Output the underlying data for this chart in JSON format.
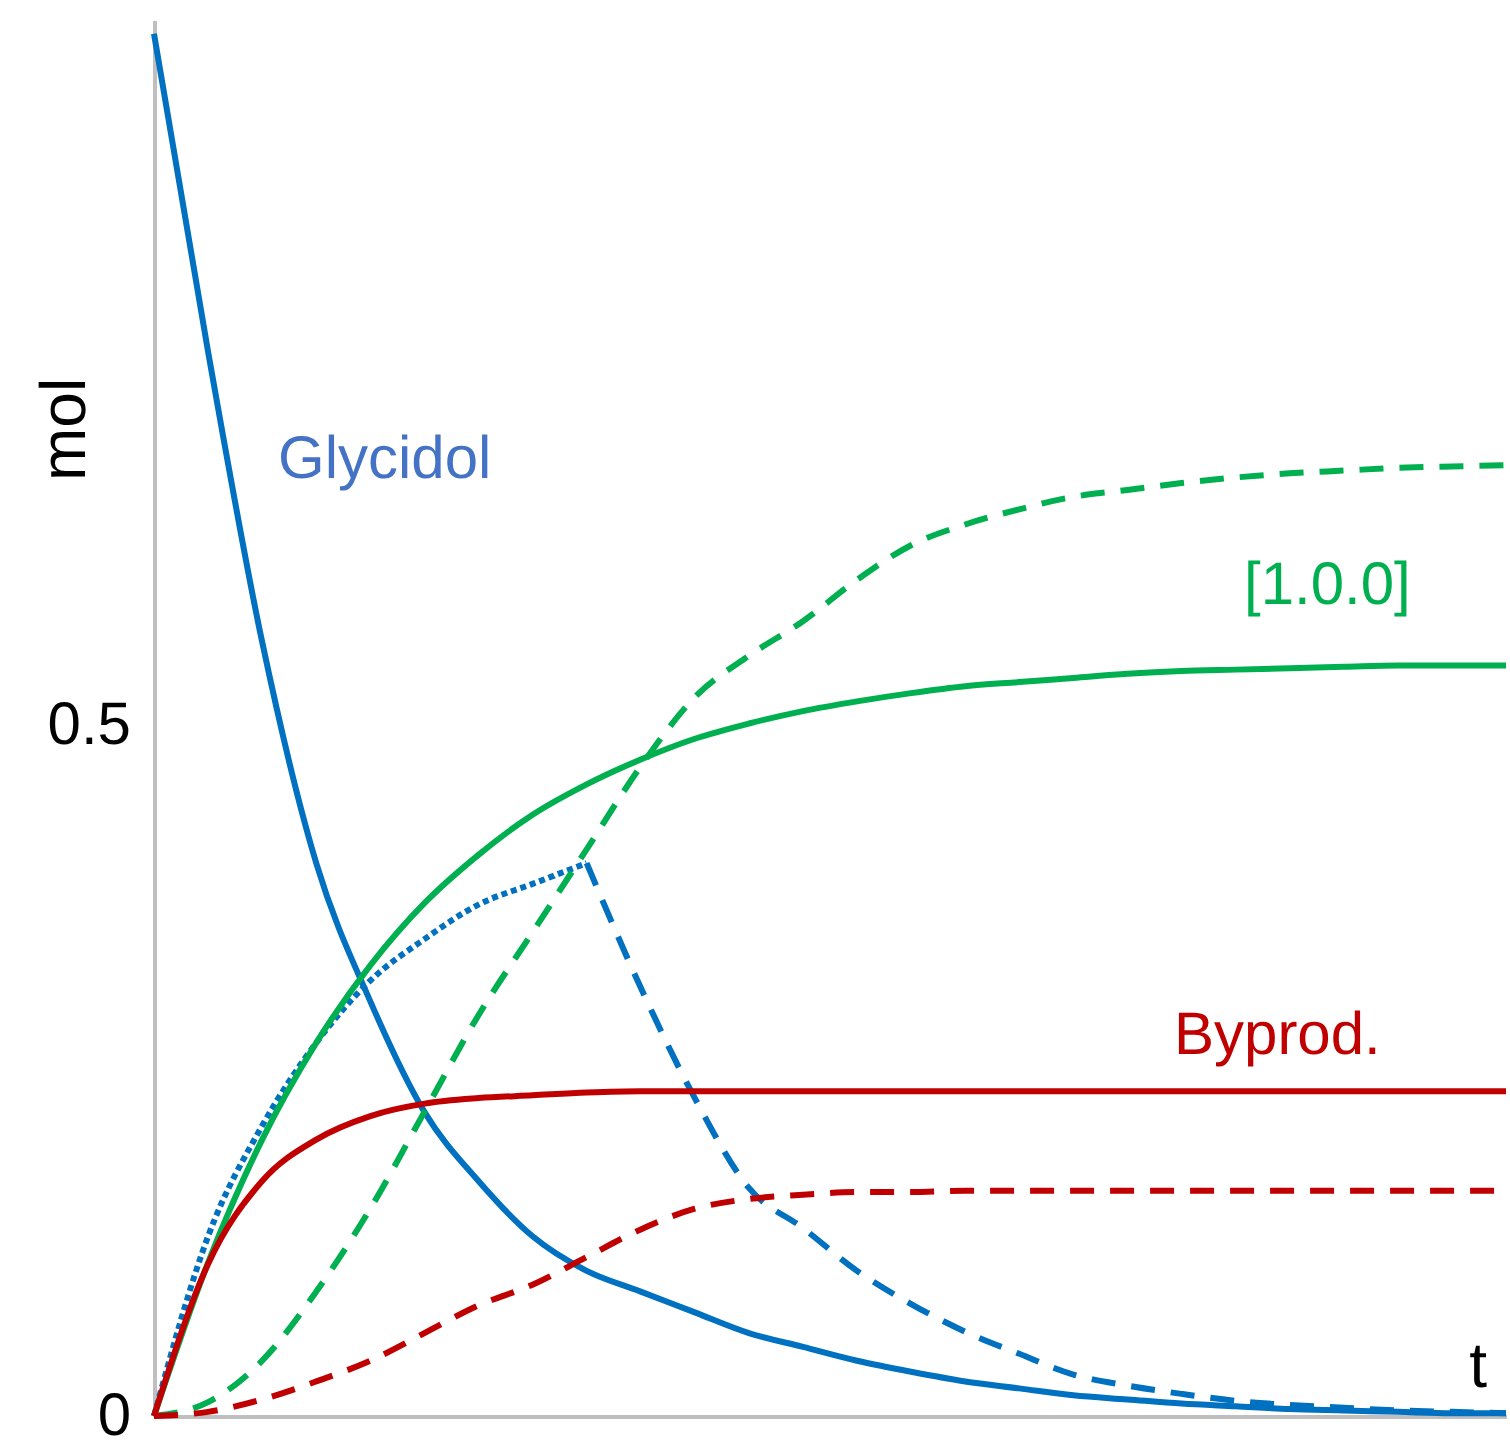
{
  "chart_data": {
    "type": "line",
    "ylabel": "mol",
    "xlabel": "t",
    "categories": [
      null,
      null,
      null,
      null,
      null,
      null,
      null,
      null,
      null,
      null,
      null,
      null,
      null,
      null,
      null,
      null,
      null,
      null,
      null,
      null,
      null,
      null,
      null,
      null,
      null,
      null
    ],
    "ylim": [
      0,
      1.01
    ],
    "yticks": [
      0,
      0.5
    ],
    "grid": false,
    "marker": "none",
    "series": [
      {
        "name": "Glycidol",
        "color": "#0070c0",
        "line_style": "solid",
        "values": [
          1.0,
          0.77,
          0.56,
          0.4,
          0.3,
          0.22,
          0.17,
          0.13,
          0.105,
          0.09,
          0.075,
          0.06,
          0.05,
          0.04,
          0.032,
          0.025,
          0.02,
          0.015,
          0.012,
          0.009,
          0.007,
          0.005,
          0.004,
          0.003,
          0.002,
          0.002
        ]
      },
      {
        "color": "#0070c0",
        "line_style": "dotted",
        "values": [
          0,
          0.13,
          0.21,
          0.27,
          0.315,
          0.345,
          0.37,
          0.385,
          0.4,
          null,
          null,
          null,
          null,
          null,
          null,
          null,
          null,
          null,
          null,
          null,
          null,
          null,
          null,
          null,
          null,
          null
        ]
      },
      {
        "color": "#0070c0",
        "line_style": "dashed",
        "values": [
          null,
          null,
          null,
          null,
          null,
          null,
          null,
          null,
          0.4,
          0.31,
          0.23,
          0.165,
          0.136,
          0.105,
          0.081,
          0.061,
          0.045,
          0.03,
          0.022,
          0.016,
          0.011,
          0.008,
          0.006,
          0.004,
          0.003,
          0.002
        ]
      },
      {
        "name": "[1.0.0]",
        "color": "#00b050",
        "line_style": "solid",
        "values": [
          0,
          0.111,
          0.2,
          0.27,
          0.326,
          0.371,
          0.406,
          0.435,
          0.457,
          0.475,
          0.49,
          0.501,
          0.51,
          0.517,
          0.523,
          0.528,
          0.531,
          0.534,
          0.537,
          0.539,
          0.54,
          0.541,
          0.542,
          0.543,
          0.543,
          0.543
        ]
      },
      {
        "color": "#00b050",
        "line_style": "dashed",
        "values": [
          0,
          0.01,
          0.04,
          0.09,
          0.15,
          0.22,
          0.29,
          0.35,
          0.41,
          0.47,
          0.52,
          0.55,
          0.575,
          0.605,
          0.63,
          0.645,
          0.656,
          0.665,
          0.67,
          0.675,
          0.679,
          0.682,
          0.684,
          0.686,
          0.687,
          0.688
        ]
      },
      {
        "name": "Byprod.",
        "color": "#c00000",
        "line_style": "solid",
        "values": [
          0,
          0.11,
          0.17,
          0.2,
          0.217,
          0.226,
          0.23,
          0.232,
          0.234,
          0.235,
          0.235,
          0.235,
          0.235,
          0.235,
          0.235,
          0.235,
          0.235,
          0.235,
          0.235,
          0.235,
          0.235,
          0.235,
          0.235,
          0.235,
          0.235,
          0.235
        ]
      },
      {
        "color": "#c00000",
        "line_style": "dashed",
        "values": [
          0,
          0.003,
          0.012,
          0.025,
          0.04,
          0.06,
          0.08,
          0.095,
          0.115,
          0.135,
          0.15,
          0.157,
          0.16,
          0.162,
          0.162,
          0.163,
          0.163,
          0.163,
          0.163,
          0.163,
          0.163,
          0.163,
          0.163,
          0.163,
          0.163,
          0.163
        ]
      }
    ]
  }
}
